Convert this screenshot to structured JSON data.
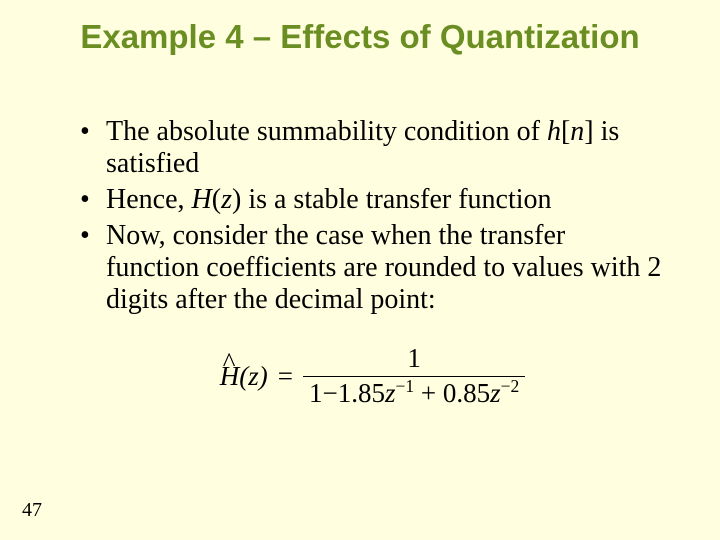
{
  "title": {
    "text": "Example 4 – Effects of Quantization",
    "color": "#6b8e23",
    "fontsize": 33,
    "font_family": "Arial"
  },
  "bullets": {
    "fontsize": 28,
    "color": "#000000",
    "items": [
      {
        "pre": "The absolute summability condition of ",
        "mid_italic": "h",
        "mid2": "[",
        "mid3_italic": "n",
        "mid4": "]",
        "post": " is satisfied"
      },
      {
        "pre": "Hence, ",
        "mid_italic": "H",
        "mid2": "(",
        "mid3_italic": "z",
        "mid4": ")",
        "post": " is a stable transfer function"
      },
      {
        "pre": "Now, consider the case when the transfer function coefficients are rounded to values with 2 digits after the decimal point:",
        "mid_italic": "",
        "mid2": "",
        "mid3_italic": "",
        "mid4": "",
        "post": ""
      }
    ]
  },
  "equation": {
    "fontsize": 27,
    "hat": "^",
    "lhs_H": "H",
    "lhs_paren_open": "(",
    "lhs_z": "z",
    "lhs_paren_close": ")",
    "equals": "=",
    "numerator": "1",
    "den_a": "1",
    "den_minus": "−",
    "den_b": "1.85",
    "den_z1": "z",
    "den_exp1": "−1",
    "den_plus": "+",
    "den_c": "0.85",
    "den_z2": "z",
    "den_exp2": "−2"
  },
  "page_number": {
    "value": "47",
    "fontsize": 20
  },
  "background_color": "#ffffe0"
}
